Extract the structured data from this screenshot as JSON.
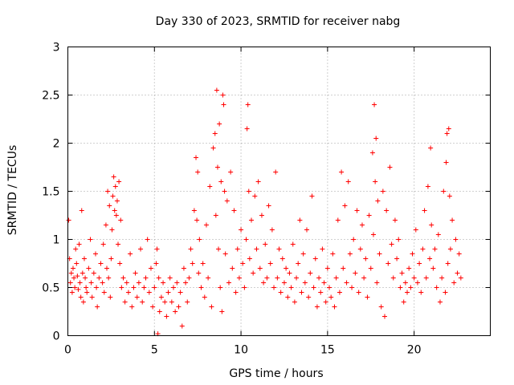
{
  "chart_data": {
    "type": "scatter",
    "title": "Day 330 of 2023, SRMTID for receiver nabg",
    "xlabel": "GPS time / hours",
    "ylabel": "SRMTID / TECUs",
    "xlim": [
      0,
      24.4
    ],
    "ylim": [
      0,
      3
    ],
    "xticks": [
      0,
      5,
      10,
      15,
      20
    ],
    "xtick_labels": [
      "0",
      "5",
      "10",
      "15",
      "20"
    ],
    "yticks": [
      0,
      0.5,
      1,
      1.5,
      2,
      2.5,
      3
    ],
    "ytick_labels": [
      "0",
      "0.5",
      "1",
      "1.5",
      "2",
      "2.5",
      "3"
    ],
    "grid": true,
    "marker": "+",
    "color": "#ff0000",
    "series": [
      {
        "name": "SRMTID",
        "points": [
          [
            0.05,
            1.2
          ],
          [
            0.1,
            0.8
          ],
          [
            0.15,
            0.55
          ],
          [
            0.2,
            0.65
          ],
          [
            0.25,
            0.45
          ],
          [
            0.3,
            0.7
          ],
          [
            0.35,
            0.6
          ],
          [
            0.4,
            0.5
          ],
          [
            0.45,
            0.9
          ],
          [
            0.5,
            0.75
          ],
          [
            0.55,
            0.62
          ],
          [
            0.6,
            0.48
          ],
          [
            0.65,
            0.95
          ],
          [
            0.7,
            0.55
          ],
          [
            0.75,
            0.4
          ],
          [
            0.8,
            1.3
          ],
          [
            0.85,
            0.65
          ],
          [
            0.9,
            0.35
          ],
          [
            0.95,
            0.8
          ],
          [
            1.0,
            0.6
          ],
          [
            1.05,
            0.5
          ],
          [
            1.1,
            0.45
          ],
          [
            1.2,
            0.7
          ],
          [
            1.3,
            1.0
          ],
          [
            1.35,
            0.55
          ],
          [
            1.4,
            0.4
          ],
          [
            1.5,
            0.65
          ],
          [
            1.6,
            0.85
          ],
          [
            1.65,
            0.5
          ],
          [
            1.7,
            0.3
          ],
          [
            1.8,
            0.6
          ],
          [
            1.9,
            0.75
          ],
          [
            2.0,
            0.55
          ],
          [
            2.05,
            0.95
          ],
          [
            2.1,
            0.45
          ],
          [
            2.2,
            1.15
          ],
          [
            2.25,
            0.7
          ],
          [
            2.3,
            1.5
          ],
          [
            2.35,
            0.6
          ],
          [
            2.4,
            1.35
          ],
          [
            2.45,
            0.4
          ],
          [
            2.5,
            0.8
          ],
          [
            2.55,
            1.1
          ],
          [
            2.6,
            1.45
          ],
          [
            2.65,
            1.65
          ],
          [
            2.7,
            1.3
          ],
          [
            2.75,
            1.55
          ],
          [
            2.8,
            1.25
          ],
          [
            2.85,
            1.4
          ],
          [
            2.9,
            0.95
          ],
          [
            2.95,
            1.6
          ],
          [
            3.0,
            0.75
          ],
          [
            3.05,
            1.2
          ],
          [
            3.1,
            0.5
          ],
          [
            3.2,
            0.6
          ],
          [
            3.3,
            0.35
          ],
          [
            3.4,
            0.55
          ],
          [
            3.5,
            0.45
          ],
          [
            3.6,
            0.85
          ],
          [
            3.7,
            0.3
          ],
          [
            3.8,
            0.5
          ],
          [
            3.9,
            0.65
          ],
          [
            4.0,
            0.4
          ],
          [
            4.1,
            0.55
          ],
          [
            4.2,
            0.9
          ],
          [
            4.3,
            0.35
          ],
          [
            4.4,
            0.5
          ],
          [
            4.5,
            0.6
          ],
          [
            4.6,
            1.0
          ],
          [
            4.7,
            0.45
          ],
          [
            4.8,
            0.7
          ],
          [
            4.9,
            0.3
          ],
          [
            5.0,
            0.5
          ],
          [
            5.1,
            0.75
          ],
          [
            5.15,
            0.9
          ],
          [
            5.2,
            0.02
          ],
          [
            5.25,
            0.6
          ],
          [
            5.3,
            0.25
          ],
          [
            5.4,
            0.4
          ],
          [
            5.5,
            0.55
          ],
          [
            5.6,
            0.35
          ],
          [
            5.7,
            0.2
          ],
          [
            5.8,
            0.45
          ],
          [
            5.9,
            0.6
          ],
          [
            6.0,
            0.35
          ],
          [
            6.1,
            0.5
          ],
          [
            6.2,
            0.25
          ],
          [
            6.3,
            0.55
          ],
          [
            6.4,
            0.3
          ],
          [
            6.5,
            0.45
          ],
          [
            6.6,
            0.1
          ],
          [
            6.7,
            0.7
          ],
          [
            6.8,
            0.55
          ],
          [
            6.9,
            0.35
          ],
          [
            7.0,
            0.6
          ],
          [
            7.1,
            0.9
          ],
          [
            7.2,
            0.75
          ],
          [
            7.3,
            1.3
          ],
          [
            7.4,
            1.85
          ],
          [
            7.45,
            1.2
          ],
          [
            7.5,
            1.7
          ],
          [
            7.55,
            0.65
          ],
          [
            7.6,
            1.0
          ],
          [
            7.7,
            0.5
          ],
          [
            7.8,
            0.75
          ],
          [
            7.9,
            0.4
          ],
          [
            8.0,
            1.15
          ],
          [
            8.1,
            0.6
          ],
          [
            8.2,
            1.55
          ],
          [
            8.3,
            0.3
          ],
          [
            8.4,
            1.95
          ],
          [
            8.5,
            2.1
          ],
          [
            8.55,
            1.25
          ],
          [
            8.6,
            2.55
          ],
          [
            8.65,
            1.75
          ],
          [
            8.7,
            0.9
          ],
          [
            8.75,
            2.2
          ],
          [
            8.8,
            0.5
          ],
          [
            8.85,
            1.6
          ],
          [
            8.9,
            0.25
          ],
          [
            8.95,
            2.5
          ],
          [
            9.0,
            2.4
          ],
          [
            9.05,
            1.5
          ],
          [
            9.1,
            0.85
          ],
          [
            9.2,
            1.4
          ],
          [
            9.3,
            0.55
          ],
          [
            9.4,
            1.7
          ],
          [
            9.5,
            0.7
          ],
          [
            9.6,
            1.3
          ],
          [
            9.7,
            0.45
          ],
          [
            9.8,
            0.9
          ],
          [
            9.9,
            0.6
          ],
          [
            10.0,
            1.1
          ],
          [
            10.1,
            0.75
          ],
          [
            10.2,
            0.5
          ],
          [
            10.3,
            1.0
          ],
          [
            10.35,
            2.15
          ],
          [
            10.4,
            2.4
          ],
          [
            10.45,
            1.5
          ],
          [
            10.5,
            0.8
          ],
          [
            10.6,
            1.2
          ],
          [
            10.7,
            0.65
          ],
          [
            10.8,
            1.45
          ],
          [
            10.9,
            0.9
          ],
          [
            11.0,
            1.6
          ],
          [
            11.1,
            0.7
          ],
          [
            11.2,
            1.25
          ],
          [
            11.3,
            0.55
          ],
          [
            11.4,
            0.95
          ],
          [
            11.5,
            0.6
          ],
          [
            11.6,
            1.35
          ],
          [
            11.7,
            0.75
          ],
          [
            11.8,
            1.1
          ],
          [
            11.9,
            0.5
          ],
          [
            12.0,
            1.7
          ],
          [
            12.1,
            0.6
          ],
          [
            12.2,
            0.9
          ],
          [
            12.3,
            0.45
          ],
          [
            12.4,
            0.8
          ],
          [
            12.5,
            0.55
          ],
          [
            12.6,
            0.7
          ],
          [
            12.7,
            0.4
          ],
          [
            12.8,
            0.65
          ],
          [
            12.9,
            0.5
          ],
          [
            13.0,
            0.95
          ],
          [
            13.1,
            0.35
          ],
          [
            13.2,
            0.6
          ],
          [
            13.3,
            0.75
          ],
          [
            13.4,
            1.2
          ],
          [
            13.5,
            0.45
          ],
          [
            13.6,
            0.85
          ],
          [
            13.7,
            0.55
          ],
          [
            13.8,
            1.1
          ],
          [
            13.9,
            0.4
          ],
          [
            14.0,
            0.65
          ],
          [
            14.1,
            1.45
          ],
          [
            14.2,
            0.5
          ],
          [
            14.3,
            0.8
          ],
          [
            14.4,
            0.3
          ],
          [
            14.5,
            0.6
          ],
          [
            14.6,
            0.45
          ],
          [
            14.7,
            0.9
          ],
          [
            14.8,
            0.55
          ],
          [
            14.9,
            0.35
          ],
          [
            15.0,
            0.7
          ],
          [
            15.1,
            0.5
          ],
          [
            15.2,
            0.4
          ],
          [
            15.3,
            0.85
          ],
          [
            15.4,
            0.3
          ],
          [
            15.5,
            0.6
          ],
          [
            15.6,
            1.2
          ],
          [
            15.7,
            0.45
          ],
          [
            15.8,
            1.7
          ],
          [
            15.9,
            0.7
          ],
          [
            16.0,
            1.35
          ],
          [
            16.1,
            0.55
          ],
          [
            16.2,
            1.6
          ],
          [
            16.3,
            0.85
          ],
          [
            16.4,
            0.5
          ],
          [
            16.5,
            1.0
          ],
          [
            16.6,
            0.65
          ],
          [
            16.7,
            1.3
          ],
          [
            16.8,
            0.45
          ],
          [
            16.9,
            0.9
          ],
          [
            17.0,
            1.15
          ],
          [
            17.1,
            0.6
          ],
          [
            17.2,
            0.8
          ],
          [
            17.3,
            0.4
          ],
          [
            17.4,
            1.25
          ],
          [
            17.5,
            0.7
          ],
          [
            17.6,
            1.9
          ],
          [
            17.65,
            1.05
          ],
          [
            17.7,
            2.4
          ],
          [
            17.75,
            1.6
          ],
          [
            17.8,
            2.05
          ],
          [
            17.85,
            0.55
          ],
          [
            17.9,
            1.4
          ],
          [
            18.0,
            0.85
          ],
          [
            18.1,
            0.3
          ],
          [
            18.2,
            1.5
          ],
          [
            18.3,
            0.2
          ],
          [
            18.4,
            1.3
          ],
          [
            18.5,
            0.75
          ],
          [
            18.6,
            1.75
          ],
          [
            18.7,
            0.95
          ],
          [
            18.8,
            0.6
          ],
          [
            18.9,
            1.2
          ],
          [
            19.0,
            0.8
          ],
          [
            19.1,
            1.0
          ],
          [
            19.2,
            0.5
          ],
          [
            19.3,
            0.65
          ],
          [
            19.4,
            0.35
          ],
          [
            19.5,
            0.55
          ],
          [
            19.6,
            0.45
          ],
          [
            19.7,
            0.7
          ],
          [
            19.8,
            0.5
          ],
          [
            19.9,
            0.85
          ],
          [
            20.0,
            0.6
          ],
          [
            20.1,
            1.1
          ],
          [
            20.2,
            0.55
          ],
          [
            20.3,
            0.75
          ],
          [
            20.4,
            0.45
          ],
          [
            20.5,
            0.9
          ],
          [
            20.6,
            1.3
          ],
          [
            20.7,
            0.6
          ],
          [
            20.8,
            1.55
          ],
          [
            20.9,
            0.8
          ],
          [
            20.95,
            1.95
          ],
          [
            21.0,
            1.15
          ],
          [
            21.1,
            0.7
          ],
          [
            21.2,
            0.9
          ],
          [
            21.3,
            0.5
          ],
          [
            21.4,
            1.05
          ],
          [
            21.5,
            0.35
          ],
          [
            21.6,
            0.6
          ],
          [
            21.7,
            1.5
          ],
          [
            21.8,
            0.45
          ],
          [
            21.85,
            1.8
          ],
          [
            21.9,
            2.1
          ],
          [
            21.95,
            0.75
          ],
          [
            22.0,
            2.15
          ],
          [
            22.05,
            1.45
          ],
          [
            22.1,
            0.9
          ],
          [
            22.2,
            1.2
          ],
          [
            22.3,
            0.55
          ],
          [
            22.4,
            1.0
          ],
          [
            22.5,
            0.65
          ],
          [
            22.6,
            0.85
          ],
          [
            22.7,
            0.6
          ]
        ]
      }
    ]
  }
}
